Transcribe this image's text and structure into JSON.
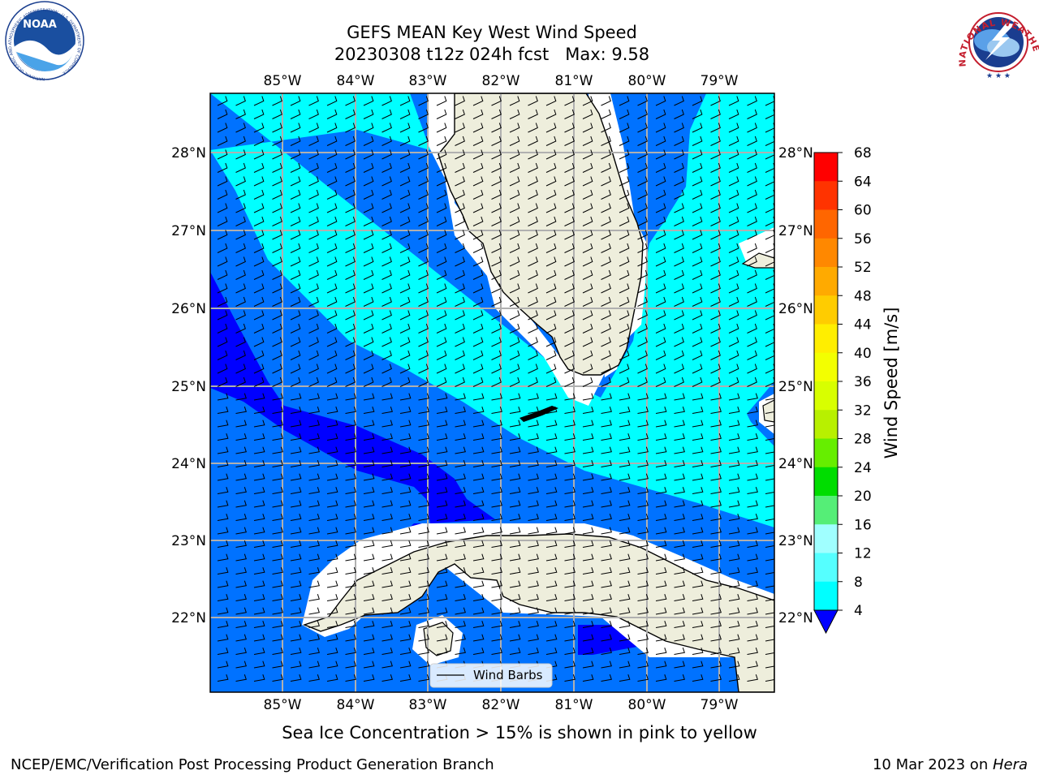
{
  "header": {
    "title_line1": "GEFS MEAN Key West Wind Speed",
    "title_line2": "20230308 t12z 024h fcst   Max: 9.58"
  },
  "logos": {
    "noaa_text": "NOAA",
    "nws_text": "NATIONAL WEATHER SERVICE",
    "noaa_ring_text": "NATIONAL OCEANIC AND ATMOSPHERIC ADMINISTRATION · U.S. DEPARTMENT OF COMMERCE"
  },
  "map": {
    "lon_labels": [
      "85°W",
      "84°W",
      "83°W",
      "82°W",
      "81°W",
      "80°W",
      "79°W"
    ],
    "lat_labels": [
      "28°N",
      "27°N",
      "26°N",
      "25°N",
      "24°N",
      "23°N",
      "22°N"
    ],
    "legend_label": "Wind Barbs",
    "colors": {
      "land": "#eeeedc",
      "grid": "#b0b0b0",
      "class_4_8": "#0072ff",
      "class_8_12": "#00ffff",
      "under_4": "#0000ff"
    }
  },
  "colorbar": {
    "label": "Wind Speed [m/s]",
    "ticks": [
      "68",
      "64",
      "60",
      "56",
      "52",
      "48",
      "44",
      "40",
      "36",
      "32",
      "28",
      "24",
      "20",
      "16",
      "12",
      "8",
      "4"
    ],
    "colors": [
      "#ff0000",
      "#ff3300",
      "#ff6600",
      "#ff8800",
      "#ffaa00",
      "#ffcc00",
      "#ffee00",
      "#f3ff00",
      "#d8ff00",
      "#b8f000",
      "#66ee00",
      "#00dd00",
      "#55ee77",
      "#a0ffff",
      "#55ffff",
      "#00ffff",
      "#0072ff"
    ],
    "under_color": "#0000ff"
  },
  "footer": {
    "note": "Sea Ice Concentration > 15% is shown in pink to yellow",
    "credit_left": "NCEP/EMC/Verification Post Processing Product Generation Branch",
    "credit_right_prefix": "10 Mar 2023 on ",
    "credit_right_host": "Hera"
  }
}
